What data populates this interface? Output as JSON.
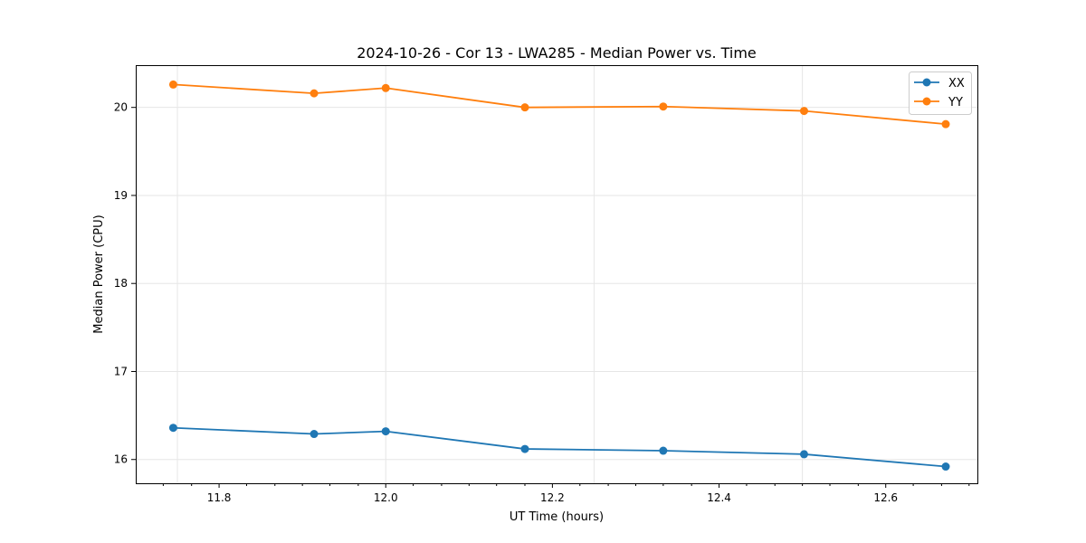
{
  "chart_data": {
    "type": "line",
    "title": "2024-10-26 - Cor 13 - LWA285 - Median Power vs. Time",
    "xlabel": "UT Time (hours)",
    "ylabel": "Median Power (CPU)",
    "xlim": [
      11.7,
      12.71
    ],
    "ylim": [
      15.73,
      20.48
    ],
    "x_major_ticks": [
      11.8,
      12.0,
      12.2,
      12.4,
      12.6
    ],
    "x_major_tick_labels": [
      "11.8",
      "12.0",
      "12.2",
      "12.4",
      "12.6"
    ],
    "x_minor_ticks": [
      11.733,
      11.767,
      11.833,
      11.867,
      11.9,
      11.933,
      11.967,
      12.033,
      12.067,
      12.1,
      12.133,
      12.167,
      12.233,
      12.267,
      12.3,
      12.333,
      12.367,
      12.433,
      12.467,
      12.5,
      12.533,
      12.567,
      12.633,
      12.667,
      12.7
    ],
    "y_ticks": [
      16,
      17,
      18,
      19,
      20
    ],
    "y_tick_labels": [
      "16",
      "17",
      "18",
      "19",
      "20"
    ],
    "grid_x": [
      11.75,
      12.0,
      12.25,
      12.5
    ],
    "grid_y": [
      16,
      17,
      18,
      19,
      20
    ],
    "grid": true,
    "legend_position": "top-right",
    "x": [
      11.745,
      11.914,
      12.0,
      12.167,
      12.333,
      12.502,
      12.672
    ],
    "series": [
      {
        "name": "XX",
        "color": "#1f77b4",
        "values": [
          16.36,
          16.29,
          16.32,
          16.12,
          16.1,
          16.06,
          15.92
        ]
      },
      {
        "name": "YY",
        "color": "#ff7f0e",
        "values": [
          20.26,
          20.16,
          20.22,
          20.0,
          20.01,
          19.96,
          19.81
        ]
      }
    ]
  }
}
